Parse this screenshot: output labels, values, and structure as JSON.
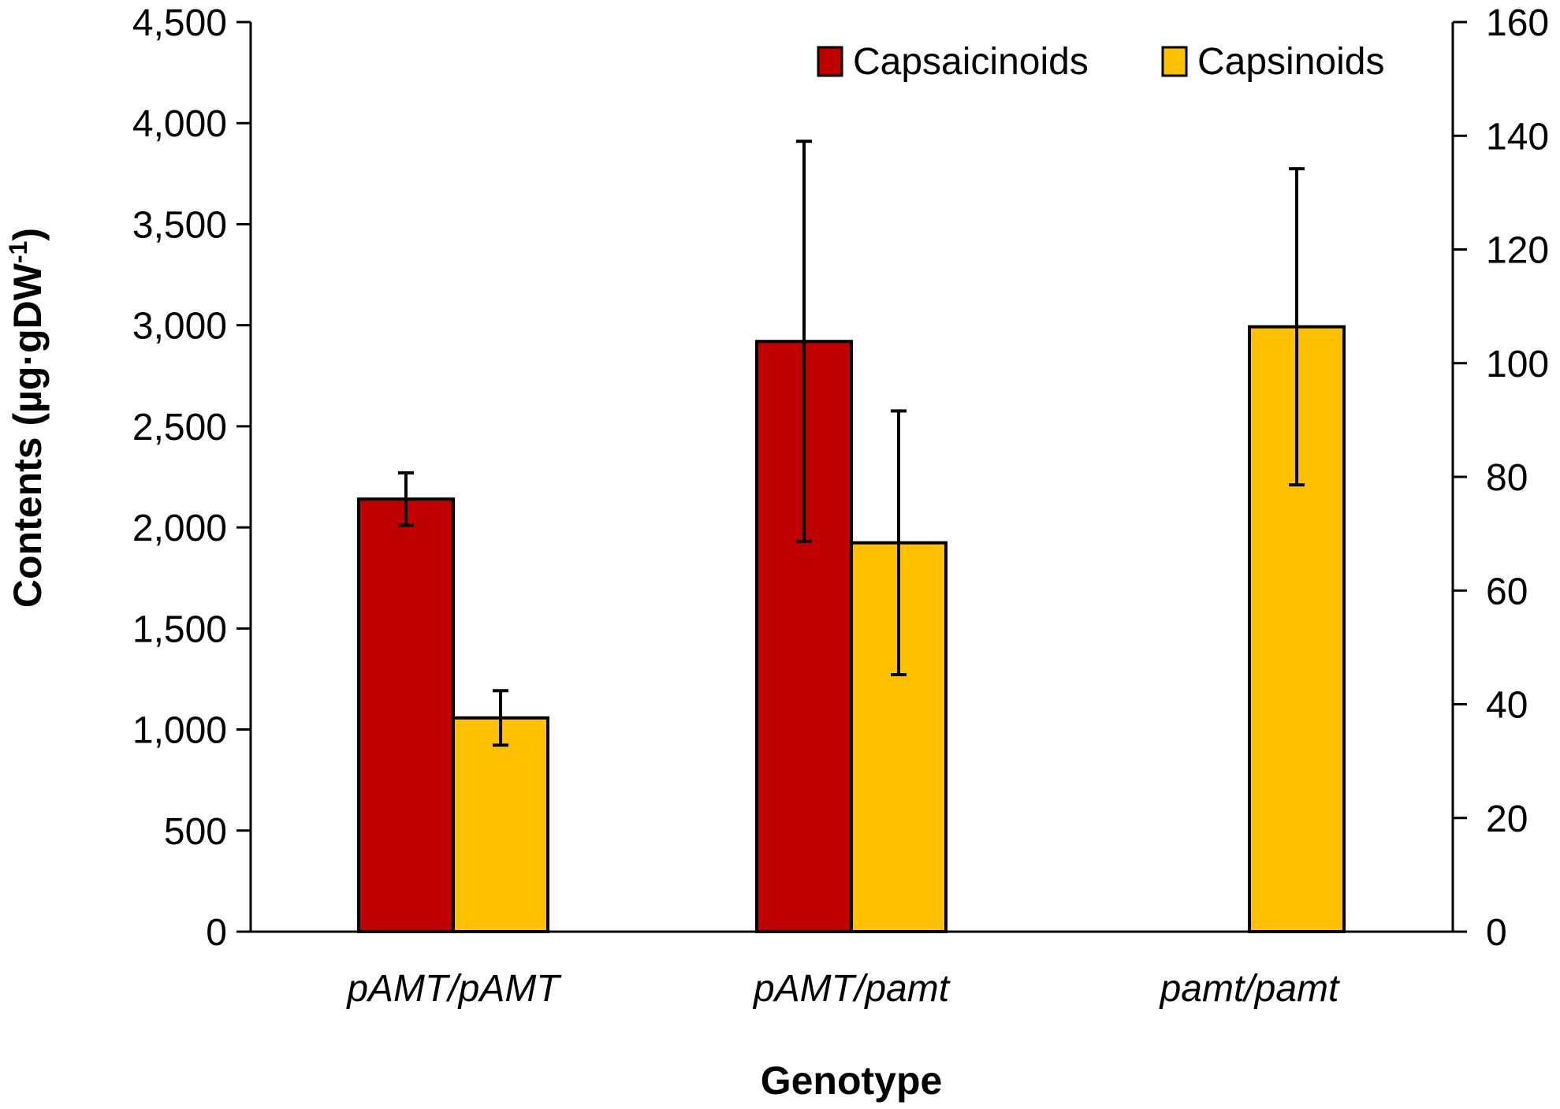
{
  "chart_data": {
    "type": "bar",
    "title": "",
    "xlabel": "Genotype",
    "ylabel": "Contents (µg·gDW",
    "ylabel_sup": "-1",
    "ylabel_close": ")",
    "categories": [
      "pAMT/pAMT",
      "pAMT/pamt",
      "pamt/pamt"
    ],
    "ylim": [
      0,
      4500
    ],
    "y_ticks": [
      0,
      500,
      1000,
      1500,
      2000,
      2500,
      3000,
      3500,
      4000,
      4500
    ],
    "y_tick_labels": [
      "0",
      "500",
      "1,000",
      "1,500",
      "2,000",
      "2,500",
      "3,000",
      "3,500",
      "4,000",
      "4,500"
    ],
    "y2lim": [
      0,
      160
    ],
    "y2_ticks": [
      0,
      20,
      40,
      60,
      80,
      100,
      120,
      140,
      160
    ],
    "y2_tick_labels": [
      "0",
      "20",
      "40",
      "60",
      "80",
      "100",
      "120",
      "140",
      "160"
    ],
    "series": [
      {
        "name": "Capsaicinoids",
        "axis": "left",
        "color": "#C00000",
        "values": [
          2140,
          2920,
          0
        ],
        "error": [
          130,
          990,
          0
        ]
      },
      {
        "name": "Capsinoids",
        "axis": "right",
        "color": "#FFC000",
        "values": [
          37.6,
          68.4,
          106.4
        ],
        "error": [
          4.8,
          23.2,
          27.8
        ]
      }
    ],
    "legend_position": "top-right",
    "grid": false
  }
}
